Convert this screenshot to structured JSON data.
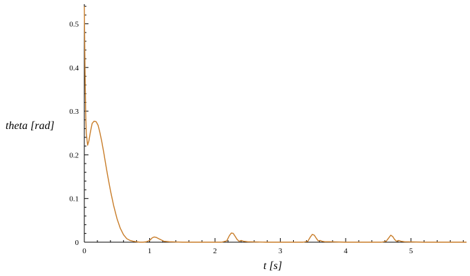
{
  "chart_data": {
    "type": "line",
    "title": "",
    "xlabel": "t [s]",
    "ylabel": "theta [rad]",
    "xlim": [
      0,
      5.85
    ],
    "ylim": [
      0,
      0.545
    ],
    "grid": false,
    "x_ticks": [
      0,
      1,
      2,
      3,
      4,
      5
    ],
    "x_tick_labels": [
      "0",
      "1",
      "2",
      "3",
      "4",
      "5"
    ],
    "y_ticks": [
      0,
      0.1,
      0.2,
      0.3,
      0.4,
      0.5
    ],
    "y_tick_labels": [
      "0",
      "0.1",
      "0.2",
      "0.3",
      "0.4",
      "0.5"
    ],
    "series": [
      {
        "color": "#c87c28",
        "x": [
          0,
          0.01,
          0.02,
          0.03,
          0.05,
          0.07,
          0.09,
          0.12,
          0.15,
          0.18,
          0.21,
          0.24,
          0.27,
          0.3,
          0.33,
          0.36,
          0.4,
          0.45,
          0.5,
          0.55,
          0.6,
          0.65,
          0.7,
          0.75,
          0.8,
          0.85,
          0.9,
          0.95,
          1.0,
          1.04,
          1.07,
          1.1,
          1.14,
          1.18,
          1.22,
          1.3,
          1.5,
          1.8,
          2.1,
          2.18,
          2.22,
          2.25,
          2.28,
          2.31,
          2.34,
          2.37,
          2.4,
          2.44,
          2.5,
          2.8,
          3.1,
          3.35,
          3.42,
          3.46,
          3.49,
          3.52,
          3.55,
          3.58,
          3.61,
          3.64,
          3.68,
          3.75,
          4.0,
          4.3,
          4.55,
          4.62,
          4.66,
          4.69,
          4.72,
          4.75,
          4.78,
          4.81,
          4.85,
          4.9,
          5.2,
          5.5,
          5.85
        ],
        "y": [
          0.54,
          0.4,
          0.3,
          0.25,
          0.222,
          0.232,
          0.25,
          0.272,
          0.277,
          0.276,
          0.268,
          0.25,
          0.228,
          0.203,
          0.176,
          0.15,
          0.118,
          0.083,
          0.054,
          0.032,
          0.017,
          0.008,
          0.004,
          0.002,
          0.001,
          0.0,
          0.0,
          0.001,
          0.004,
          0.01,
          0.012,
          0.011,
          0.008,
          0.005,
          0.002,
          0.001,
          0.0,
          0.0,
          0.0,
          0.003,
          0.015,
          0.021,
          0.02,
          0.013,
          0.006,
          0.002,
          0.004,
          0.002,
          0.001,
          0.0,
          0.0,
          0.0,
          0.002,
          0.012,
          0.018,
          0.016,
          0.009,
          0.003,
          0.004,
          0.002,
          0.001,
          0.001,
          0.0,
          0.0,
          0.0,
          0.002,
          0.01,
          0.016,
          0.013,
          0.006,
          0.002,
          0.004,
          0.002,
          0.001,
          0.0,
          0.0,
          0.0
        ]
      }
    ]
  }
}
